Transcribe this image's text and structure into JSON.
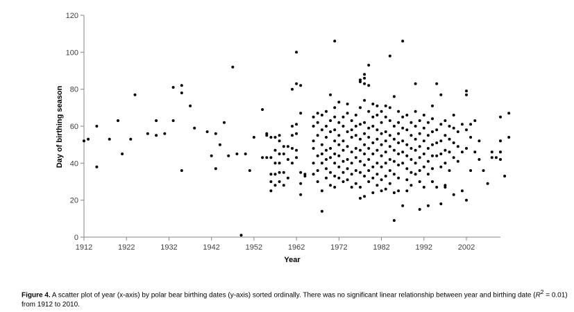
{
  "chart_data": {
    "type": "scatter",
    "title": "",
    "xlabel": "Year",
    "ylabel": "Day of birthing season",
    "xlim": [
      1912,
      2010
    ],
    "ylim": [
      0,
      120
    ],
    "xticks": [
      1912,
      1922,
      1932,
      1942,
      1952,
      1962,
      1972,
      1982,
      1992,
      2002
    ],
    "yticks": [
      0,
      20,
      40,
      60,
      80,
      100,
      120
    ],
    "grid": false,
    "legend": "none",
    "marker_color": "#000000",
    "points": [
      [
        1912,
        52
      ],
      [
        1913,
        53
      ],
      [
        1915,
        60
      ],
      [
        1915,
        38
      ],
      [
        1918,
        53
      ],
      [
        1920,
        63
      ],
      [
        1921,
        45
      ],
      [
        1923,
        53
      ],
      [
        1924,
        77
      ],
      [
        1927,
        56
      ],
      [
        1929,
        63
      ],
      [
        1929,
        55
      ],
      [
        1931,
        56
      ],
      [
        1933,
        81
      ],
      [
        1933,
        63
      ],
      [
        1935,
        82
      ],
      [
        1935,
        78
      ],
      [
        1935,
        36
      ],
      [
        1937,
        71
      ],
      [
        1938,
        59
      ],
      [
        1941,
        57
      ],
      [
        1942,
        44
      ],
      [
        1943,
        56
      ],
      [
        1943,
        37
      ],
      [
        1944,
        50
      ],
      [
        1945,
        62
      ],
      [
        1946,
        44
      ],
      [
        1947,
        92
      ],
      [
        1948,
        45
      ],
      [
        1949,
        1
      ],
      [
        1950,
        45
      ],
      [
        1951,
        36
      ],
      [
        1952,
        54
      ],
      [
        1954,
        69
      ],
      [
        1954,
        43
      ],
      [
        1955,
        43
      ],
      [
        1955,
        55
      ],
      [
        1955,
        56
      ],
      [
        1956,
        54
      ],
      [
        1956,
        43
      ],
      [
        1956,
        34
      ],
      [
        1956,
        30
      ],
      [
        1956,
        25
      ],
      [
        1957,
        54
      ],
      [
        1957,
        47
      ],
      [
        1957,
        40
      ],
      [
        1957,
        34
      ],
      [
        1957,
        28
      ],
      [
        1958,
        55
      ],
      [
        1958,
        52
      ],
      [
        1958,
        45
      ],
      [
        1958,
        40
      ],
      [
        1958,
        35
      ],
      [
        1958,
        30
      ],
      [
        1959,
        49
      ],
      [
        1959,
        45
      ],
      [
        1959,
        35
      ],
      [
        1959,
        28
      ],
      [
        1960,
        49
      ],
      [
        1960,
        42
      ],
      [
        1960,
        32
      ],
      [
        1961,
        80
      ],
      [
        1961,
        60
      ],
      [
        1961,
        55
      ],
      [
        1961,
        48
      ],
      [
        1961,
        40
      ],
      [
        1962,
        61
      ],
      [
        1962,
        56
      ],
      [
        1962,
        47
      ],
      [
        1962,
        43
      ],
      [
        1962,
        100
      ],
      [
        1962,
        83
      ],
      [
        1963,
        82
      ],
      [
        1963,
        67
      ],
      [
        1963,
        35
      ],
      [
        1963,
        29
      ],
      [
        1963,
        23
      ],
      [
        1964,
        34
      ],
      [
        1964,
        33
      ],
      [
        1966,
        65
      ],
      [
        1966,
        60
      ],
      [
        1966,
        52
      ],
      [
        1966,
        48
      ],
      [
        1966,
        40
      ],
      [
        1966,
        34
      ],
      [
        1967,
        67
      ],
      [
        1967,
        62
      ],
      [
        1967,
        55
      ],
      [
        1967,
        44
      ],
      [
        1967,
        36
      ],
      [
        1967,
        30
      ],
      [
        1968,
        14
      ],
      [
        1968,
        66
      ],
      [
        1968,
        58
      ],
      [
        1968,
        50
      ],
      [
        1968,
        45
      ],
      [
        1968,
        40
      ],
      [
        1968,
        25
      ],
      [
        1969,
        68
      ],
      [
        1969,
        60
      ],
      [
        1969,
        54
      ],
      [
        1969,
        47
      ],
      [
        1969,
        42
      ],
      [
        1969,
        37
      ],
      [
        1969,
        32
      ],
      [
        1970,
        77
      ],
      [
        1970,
        63
      ],
      [
        1970,
        57
      ],
      [
        1970,
        48
      ],
      [
        1970,
        43
      ],
      [
        1970,
        35
      ],
      [
        1970,
        28
      ],
      [
        1971,
        106
      ],
      [
        1971,
        70
      ],
      [
        1971,
        65
      ],
      [
        1971,
        58
      ],
      [
        1971,
        52
      ],
      [
        1971,
        45
      ],
      [
        1971,
        40
      ],
      [
        1971,
        33
      ],
      [
        1971,
        27
      ],
      [
        1972,
        73
      ],
      [
        1972,
        62
      ],
      [
        1972,
        55
      ],
      [
        1972,
        50
      ],
      [
        1972,
        44
      ],
      [
        1972,
        38
      ],
      [
        1972,
        32
      ],
      [
        1973,
        65
      ],
      [
        1973,
        60
      ],
      [
        1973,
        52
      ],
      [
        1973,
        47
      ],
      [
        1973,
        41
      ],
      [
        1973,
        35
      ],
      [
        1973,
        30
      ],
      [
        1974,
        72
      ],
      [
        1974,
        67
      ],
      [
        1974,
        57
      ],
      [
        1974,
        49
      ],
      [
        1974,
        42
      ],
      [
        1974,
        37
      ],
      [
        1974,
        31
      ],
      [
        1975,
        63
      ],
      [
        1975,
        58
      ],
      [
        1975,
        54
      ],
      [
        1975,
        46
      ],
      [
        1975,
        40
      ],
      [
        1975,
        34
      ],
      [
        1975,
        27
      ],
      [
        1976,
        66
      ],
      [
        1976,
        60
      ],
      [
        1976,
        55
      ],
      [
        1976,
        48
      ],
      [
        1976,
        43
      ],
      [
        1976,
        36
      ],
      [
        1976,
        29
      ],
      [
        1977,
        85
      ],
      [
        1977,
        84
      ],
      [
        1977,
        70
      ],
      [
        1977,
        61
      ],
      [
        1977,
        53
      ],
      [
        1977,
        47
      ],
      [
        1977,
        41
      ],
      [
        1977,
        35
      ],
      [
        1977,
        27
      ],
      [
        1977,
        21
      ],
      [
        1978,
        88
      ],
      [
        1978,
        86
      ],
      [
        1978,
        83
      ],
      [
        1978,
        74
      ],
      [
        1978,
        62
      ],
      [
        1978,
        56
      ],
      [
        1978,
        50
      ],
      [
        1978,
        45
      ],
      [
        1978,
        39
      ],
      [
        1978,
        33
      ],
      [
        1978,
        22
      ],
      [
        1979,
        93
      ],
      [
        1979,
        82
      ],
      [
        1979,
        68
      ],
      [
        1979,
        59
      ],
      [
        1979,
        54
      ],
      [
        1979,
        48
      ],
      [
        1979,
        42
      ],
      [
        1979,
        36
      ],
      [
        1979,
        30
      ],
      [
        1980,
        72
      ],
      [
        1980,
        65
      ],
      [
        1980,
        60
      ],
      [
        1980,
        51
      ],
      [
        1980,
        45
      ],
      [
        1980,
        38
      ],
      [
        1980,
        32
      ],
      [
        1980,
        24
      ],
      [
        1981,
        71
      ],
      [
        1981,
        66
      ],
      [
        1981,
        58
      ],
      [
        1981,
        53
      ],
      [
        1981,
        47
      ],
      [
        1981,
        40
      ],
      [
        1981,
        34
      ],
      [
        1981,
        28
      ],
      [
        1982,
        68
      ],
      [
        1982,
        62
      ],
      [
        1982,
        56
      ],
      [
        1982,
        50
      ],
      [
        1982,
        44
      ],
      [
        1982,
        38
      ],
      [
        1982,
        31
      ],
      [
        1982,
        25
      ],
      [
        1983,
        71
      ],
      [
        1983,
        65
      ],
      [
        1983,
        57
      ],
      [
        1983,
        52
      ],
      [
        1983,
        46
      ],
      [
        1983,
        40
      ],
      [
        1983,
        33
      ],
      [
        1983,
        26
      ],
      [
        1984,
        98
      ],
      [
        1984,
        70
      ],
      [
        1984,
        63
      ],
      [
        1984,
        55
      ],
      [
        1984,
        49
      ],
      [
        1984,
        42
      ],
      [
        1984,
        36
      ],
      [
        1984,
        29
      ],
      [
        1985,
        76
      ],
      [
        1985,
        9
      ],
      [
        1985,
        60
      ],
      [
        1985,
        53
      ],
      [
        1985,
        47
      ],
      [
        1985,
        41
      ],
      [
        1985,
        34
      ],
      [
        1985,
        24
      ],
      [
        1986,
        68
      ],
      [
        1986,
        62
      ],
      [
        1986,
        56
      ],
      [
        1986,
        51
      ],
      [
        1986,
        45
      ],
      [
        1986,
        39
      ],
      [
        1986,
        32
      ],
      [
        1986,
        25
      ],
      [
        1987,
        106
      ],
      [
        1987,
        65
      ],
      [
        1987,
        59
      ],
      [
        1987,
        52
      ],
      [
        1987,
        46
      ],
      [
        1987,
        40
      ],
      [
        1987,
        17
      ],
      [
        1988,
        66
      ],
      [
        1988,
        58
      ],
      [
        1988,
        50
      ],
      [
        1988,
        44
      ],
      [
        1988,
        37
      ],
      [
        1988,
        31
      ],
      [
        1988,
        25
      ],
      [
        1989,
        62
      ],
      [
        1989,
        55
      ],
      [
        1989,
        48
      ],
      [
        1989,
        42
      ],
      [
        1989,
        35
      ],
      [
        1989,
        28
      ],
      [
        1990,
        83
      ],
      [
        1990,
        68
      ],
      [
        1990,
        60
      ],
      [
        1990,
        53
      ],
      [
        1990,
        47
      ],
      [
        1990,
        40
      ],
      [
        1990,
        34
      ],
      [
        1991,
        15
      ],
      [
        1991,
        63
      ],
      [
        1991,
        56
      ],
      [
        1991,
        49
      ],
      [
        1991,
        43
      ],
      [
        1991,
        36
      ],
      [
        1991,
        30
      ],
      [
        1992,
        66
      ],
      [
        1992,
        59
      ],
      [
        1992,
        52
      ],
      [
        1992,
        45
      ],
      [
        1992,
        38
      ],
      [
        1992,
        27
      ],
      [
        1993,
        17
      ],
      [
        1993,
        62
      ],
      [
        1993,
        55
      ],
      [
        1993,
        48
      ],
      [
        1993,
        41
      ],
      [
        1993,
        34
      ],
      [
        1994,
        71
      ],
      [
        1994,
        64
      ],
      [
        1994,
        57
      ],
      [
        1994,
        50
      ],
      [
        1994,
        44
      ],
      [
        1994,
        37
      ],
      [
        1994,
        30
      ],
      [
        1995,
        83
      ],
      [
        1995,
        58
      ],
      [
        1995,
        51
      ],
      [
        1995,
        44
      ],
      [
        1995,
        27
      ],
      [
        1996,
        77
      ],
      [
        1996,
        61
      ],
      [
        1996,
        52
      ],
      [
        1996,
        45
      ],
      [
        1996,
        38
      ],
      [
        1996,
        18
      ],
      [
        1997,
        63
      ],
      [
        1997,
        55
      ],
      [
        1997,
        47
      ],
      [
        1997,
        40
      ],
      [
        1997,
        28
      ],
      [
        1997,
        27
      ],
      [
        1998,
        60
      ],
      [
        1998,
        53
      ],
      [
        1998,
        46
      ],
      [
        1998,
        36
      ],
      [
        1999,
        66
      ],
      [
        1999,
        59
      ],
      [
        1999,
        51
      ],
      [
        1999,
        43
      ],
      [
        1999,
        23
      ],
      [
        2000,
        57
      ],
      [
        2000,
        49
      ],
      [
        2000,
        41
      ],
      [
        2001,
        61
      ],
      [
        2001,
        46
      ],
      [
        2001,
        25
      ],
      [
        2002,
        77
      ],
      [
        2002,
        79
      ],
      [
        2002,
        58
      ],
      [
        2002,
        48
      ],
      [
        2002,
        20
      ],
      [
        2003,
        61
      ],
      [
        2003,
        54
      ],
      [
        2003,
        36
      ],
      [
        2004,
        63
      ],
      [
        2004,
        46
      ],
      [
        2005,
        52
      ],
      [
        2005,
        42
      ],
      [
        2006,
        36
      ],
      [
        2007,
        29
      ],
      [
        2008,
        46
      ],
      [
        2008,
        43
      ],
      [
        2009,
        43
      ],
      [
        2010,
        65
      ],
      [
        2010,
        52
      ],
      [
        2010,
        46
      ],
      [
        2010,
        42
      ],
      [
        2011,
        33
      ],
      [
        2012,
        67
      ],
      [
        2012,
        54
      ]
    ]
  },
  "caption": {
    "label": "Figure 4.",
    "text_before": " A scatter plot of year (x-axis) by polar bear birthing dates (y-axis) sorted ordinally. There was no significant linear relationship between year and birthing date (",
    "r_symbol": "R",
    "r_exponent": "2",
    "text_after": " = 0.01) from 1912 to 2010."
  }
}
